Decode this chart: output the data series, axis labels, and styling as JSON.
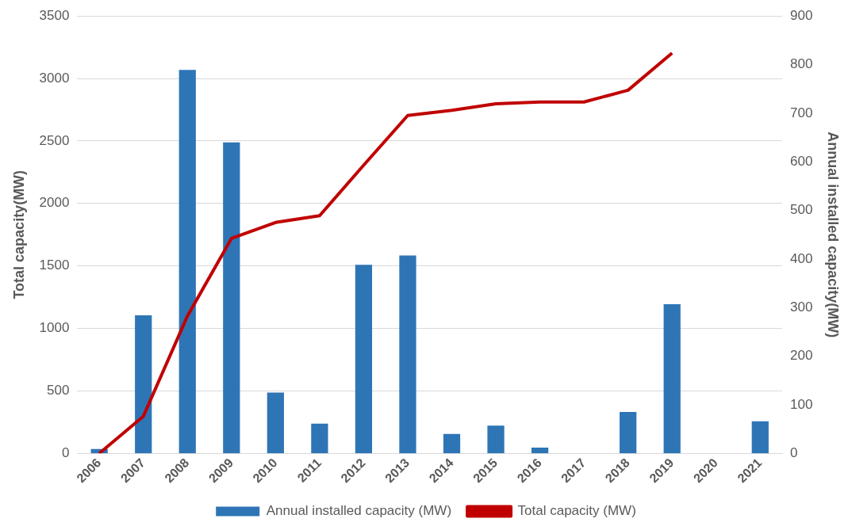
{
  "chart_data": {
    "type": "bar",
    "ylabel": "Total capacity(MW)",
    "y2label": "Annual installed capacity(MW)",
    "categories": [
      "2006",
      "2007",
      "2008",
      "2009",
      "2010",
      "2011",
      "2012",
      "2013",
      "2014",
      "2015",
      "2016",
      "2017",
      "2018",
      "2019",
      "2020",
      "2021"
    ],
    "series": [
      {
        "name": "Annual installed capacity (MW)",
        "axis": "y2",
        "color": "#2e75b6",
        "values": [
          9,
          284,
          789,
          640,
          125,
          61,
          388,
          407,
          40,
          57,
          12,
          null,
          85,
          307,
          null,
          66
        ]
      },
      {
        "name": "Total capacity (MW)",
        "type": "line",
        "axis": "y",
        "color": "#c00000",
        "values": [
          0,
          297,
          1099,
          1720,
          1848,
          1902,
          2306,
          2704,
          2745,
          2798,
          2812,
          2812,
          2906,
          3203,
          null,
          null
        ]
      }
    ],
    "ylim": [
      0,
      3500
    ],
    "yticks": [
      0,
      500,
      1000,
      1500,
      2000,
      2500,
      3000,
      3500
    ],
    "y2lim": [
      0,
      900
    ],
    "y2ticks": [
      0,
      100,
      200,
      300,
      400,
      500,
      600,
      700,
      800,
      900
    ],
    "grid": "y",
    "legend": "bottom",
    "marker": "none",
    "line_style": "solid"
  }
}
